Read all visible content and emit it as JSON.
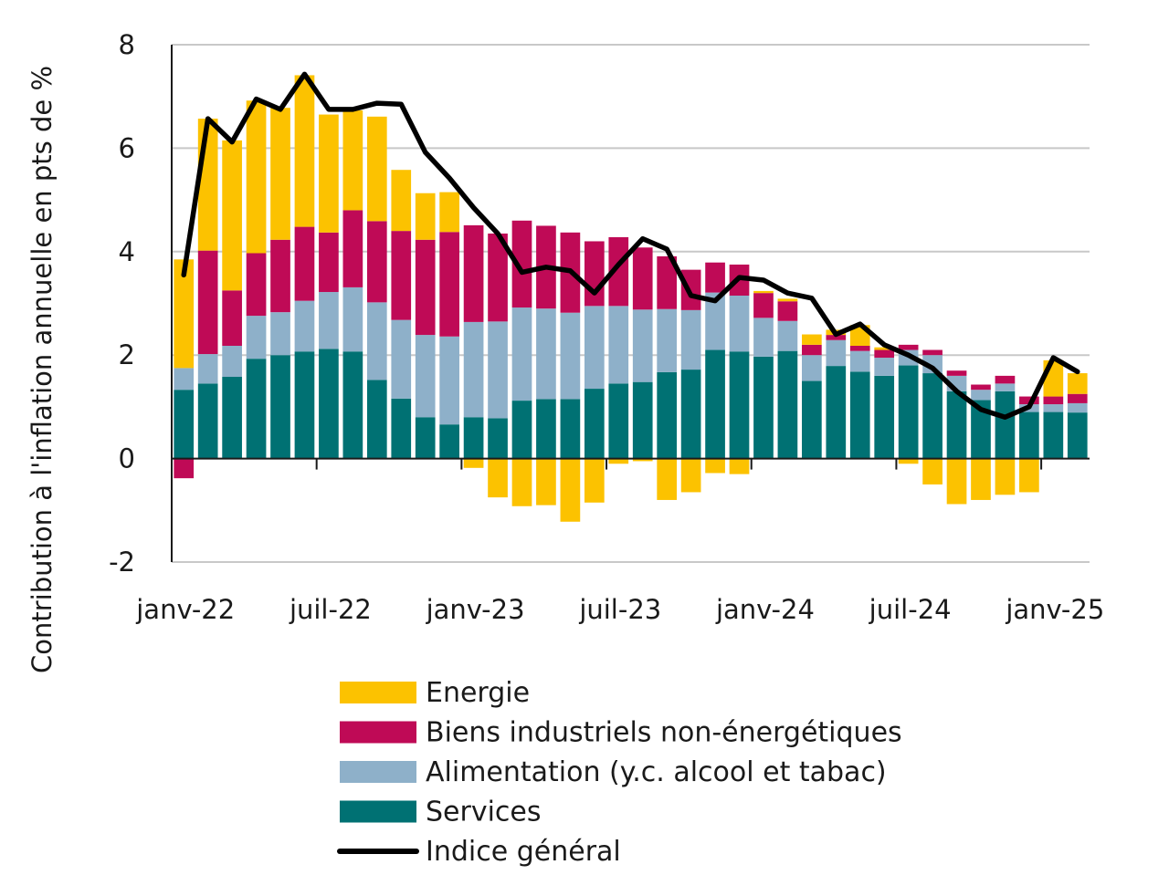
{
  "chart_data": {
    "type": "bar",
    "stacked": true,
    "title": "",
    "ylabel": "Contribution à l'inflation annuelle en pts de %",
    "xlabel": "",
    "ylim": [
      -2,
      8
    ],
    "yticks": [
      -2,
      0,
      2,
      4,
      6,
      8
    ],
    "grid": true,
    "legend_position": "bottom",
    "x_tick_labels": [
      "janv-22",
      "juil-22",
      "janv-23",
      "juil-23",
      "janv-24",
      "juil-24",
      "janv-25"
    ],
    "categories": [
      "janv-22",
      "févr-22",
      "mars-22",
      "avr-22",
      "mai-22",
      "juin-22",
      "juil-22",
      "août-22",
      "sept-22",
      "oct-22",
      "nov-22",
      "déc-22",
      "janv-23",
      "févr-23",
      "mars-23",
      "avr-23",
      "mai-23",
      "juin-23",
      "juil-23",
      "août-23",
      "sept-23",
      "oct-23",
      "nov-23",
      "déc-23",
      "janv-24",
      "févr-24",
      "mars-24",
      "avr-24",
      "mai-24",
      "juin-24",
      "juil-24",
      "août-24",
      "sept-24",
      "oct-24",
      "nov-24",
      "déc-24",
      "janv-25",
      "févr-25"
    ],
    "series": [
      {
        "name": "Services",
        "color": "#007173",
        "values": [
          1.33,
          1.45,
          1.58,
          1.93,
          2.0,
          2.07,
          2.12,
          2.07,
          1.52,
          1.16,
          0.8,
          0.66,
          0.8,
          0.78,
          1.12,
          1.15,
          1.15,
          1.35,
          1.45,
          1.48,
          1.67,
          1.72,
          2.1,
          2.07,
          1.97,
          2.08,
          1.5,
          1.79,
          1.68,
          1.6,
          1.8,
          1.65,
          1.3,
          1.13,
          1.3,
          0.9,
          0.9,
          0.89
        ]
      },
      {
        "name": "Alimentation (y.c. alcool et tabac)",
        "color": "#8eb0c9",
        "values": [
          0.42,
          0.57,
          0.6,
          0.83,
          0.83,
          0.98,
          1.1,
          1.24,
          1.5,
          1.52,
          1.59,
          1.7,
          1.84,
          1.87,
          1.8,
          1.75,
          1.67,
          1.6,
          1.5,
          1.4,
          1.22,
          1.15,
          1.11,
          1.08,
          0.75,
          0.58,
          0.5,
          0.5,
          0.4,
          0.35,
          0.3,
          0.35,
          0.3,
          0.2,
          0.15,
          0.15,
          0.15,
          0.18
        ]
      },
      {
        "name": "Biens industriels non-énergétiques",
        "color": "#bf0a56",
        "values": [
          -0.38,
          2.0,
          1.07,
          1.21,
          1.4,
          1.43,
          1.15,
          1.49,
          1.57,
          1.72,
          1.84,
          2.02,
          1.87,
          1.7,
          1.68,
          1.6,
          1.55,
          1.25,
          1.33,
          1.2,
          1.02,
          0.78,
          0.58,
          0.6,
          0.48,
          0.38,
          0.2,
          0.1,
          0.1,
          0.15,
          0.1,
          0.1,
          0.1,
          0.1,
          0.15,
          0.15,
          0.15,
          0.18
        ]
      },
      {
        "name": "Energie",
        "color": "#fcc200",
        "values": [
          2.1,
          2.55,
          2.9,
          2.95,
          2.55,
          2.93,
          2.28,
          1.93,
          2.02,
          1.18,
          0.9,
          0.77,
          -0.18,
          -0.75,
          -0.92,
          -0.9,
          -1.22,
          -0.85,
          -0.1,
          -0.05,
          -0.8,
          -0.65,
          -0.28,
          -0.3,
          0.04,
          0.05,
          0.2,
          0.1,
          0.4,
          0.05,
          -0.1,
          -0.5,
          -0.88,
          -0.8,
          -0.7,
          -0.65,
          0.7,
          0.4
        ]
      }
    ],
    "line": {
      "name": "Indice général",
      "color": "#000000",
      "values": [
        3.55,
        6.57,
        6.12,
        6.95,
        6.75,
        7.43,
        6.75,
        6.75,
        6.87,
        6.85,
        5.92,
        5.42,
        4.85,
        4.35,
        3.6,
        3.7,
        3.63,
        3.2,
        3.75,
        4.25,
        4.05,
        3.15,
        3.05,
        3.5,
        3.45,
        3.2,
        3.1,
        2.4,
        2.6,
        2.2,
        2.0,
        1.75,
        1.3,
        0.95,
        0.8,
        1.0,
        1.95,
        1.68
      ]
    }
  }
}
